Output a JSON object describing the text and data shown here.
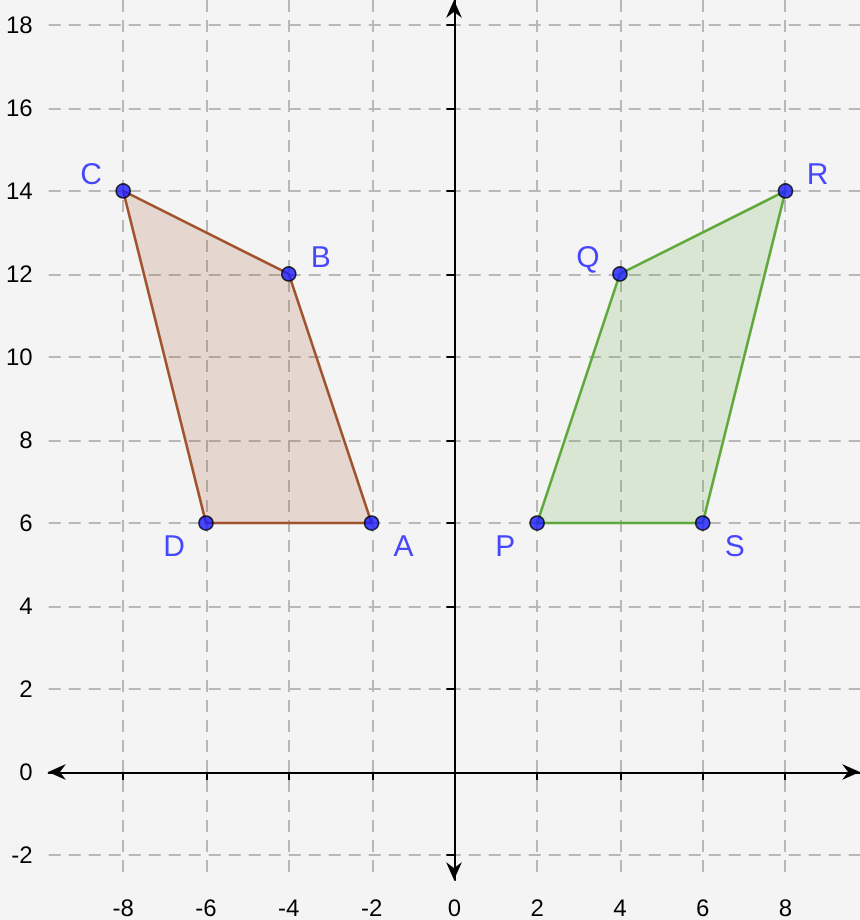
{
  "chart_data": {
    "type": "area",
    "series": [
      {
        "color": "#a0522d",
        "x": [
          -2,
          -4,
          -8,
          -6
        ],
        "values": [
          6,
          12,
          14,
          6
        ]
      },
      {
        "color": "#5fa83b",
        "x": [
          2,
          4,
          8,
          6
        ],
        "values": [
          6,
          12,
          14,
          6
        ]
      },
      {
        "type": "scatter",
        "marker": "circle",
        "color": "#1a1aff",
        "x": [
          -2,
          -4,
          -8,
          -6,
          2,
          4,
          8,
          6
        ],
        "values": [
          6,
          12,
          14,
          6,
          6,
          12,
          14,
          6
        ]
      }
    ],
    "annotations": [
      {
        "text": "A",
        "x": -2,
        "y": 6
      },
      {
        "text": "B",
        "x": -4,
        "y": 12
      },
      {
        "text": "C",
        "x": -8,
        "y": 14
      },
      {
        "text": "D",
        "x": -6,
        "y": 6
      },
      {
        "text": "P",
        "x": 2,
        "y": 6
      },
      {
        "text": "Q",
        "x": 4,
        "y": 12
      },
      {
        "text": "R",
        "x": 8,
        "y": 14
      },
      {
        "text": "S",
        "x": 6,
        "y": 6
      }
    ],
    "xlim": [
      -9.8,
      9.8
    ],
    "ylim": [
      -2.6,
      18.6
    ],
    "xticks": [
      -8,
      -6,
      -4,
      -2,
      0,
      2,
      4,
      6,
      8
    ],
    "yticks": [
      -2,
      0,
      2,
      4,
      6,
      8,
      10,
      12,
      14,
      16,
      18
    ],
    "grid": true
  }
}
